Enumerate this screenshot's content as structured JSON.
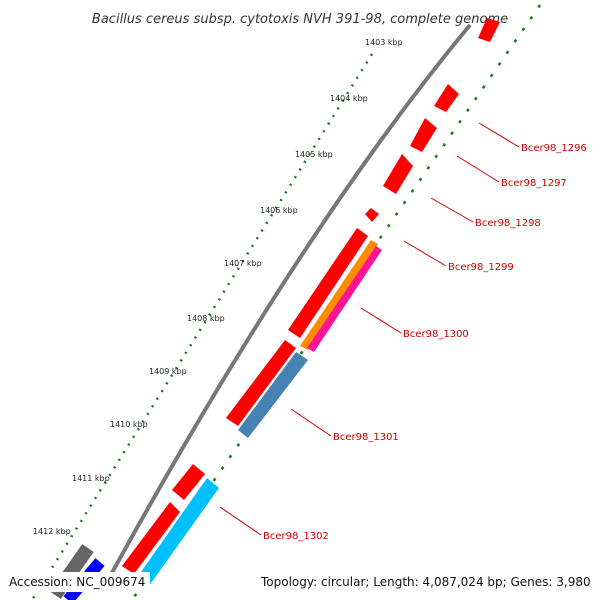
{
  "title": "Bacillus cereus subsp. cytotoxis NVH 391-98, complete genome",
  "footer": {
    "accession": "Accession: NC_009674",
    "stats": "Topology: circular; Length: 4,087,024 bp; Genes: 3,980"
  },
  "ticks": [
    {
      "label": "1403 kbp"
    },
    {
      "label": "1404 kbp"
    },
    {
      "label": "1405 kbp"
    },
    {
      "label": "1406 kbp"
    },
    {
      "label": "1407 kbp"
    },
    {
      "label": "1408 kbp"
    },
    {
      "label": "1409 kbp"
    },
    {
      "label": "1410 kbp"
    },
    {
      "label": "1411 kbp"
    },
    {
      "label": "1412 kbp"
    }
  ],
  "genes": [
    {
      "label": "Bcer98_1296"
    },
    {
      "label": "Bcer98_1297"
    },
    {
      "label": "Bcer98_1298"
    },
    {
      "label": "Bcer98_1299"
    },
    {
      "label": "Bcer98_1300"
    },
    {
      "label": "Bcer98_1301"
    },
    {
      "label": "Bcer98_1302"
    }
  ],
  "colors": {
    "cds": "#ff0000",
    "trna": "#ff8c00",
    "rrna": "#ff1493",
    "gene_blue": "#4682b4",
    "gene_cyan": "#00bfff",
    "backbone": "#808080",
    "ticks_green": "#1a7a1a",
    "label": "#cc0000"
  }
}
